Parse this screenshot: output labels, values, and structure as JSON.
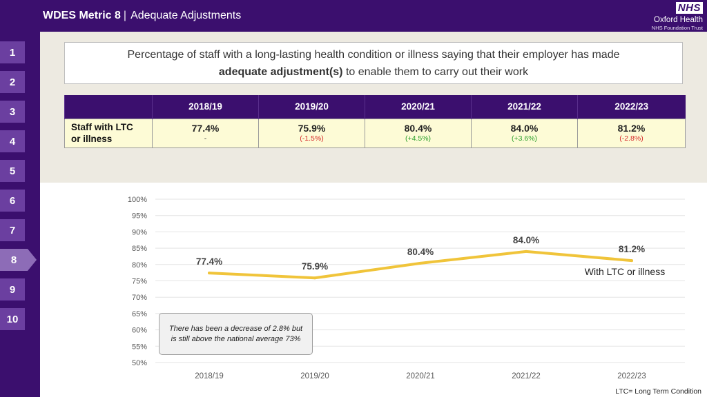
{
  "header": {
    "metric": "WDES Metric 8",
    "separator": "|",
    "subtitle": "Adequate Adjustments"
  },
  "logo": {
    "nhs": "NHS",
    "org": "Oxford Health",
    "trust": "NHS Foundation Trust"
  },
  "nav": {
    "items": [
      "1",
      "2",
      "3",
      "4",
      "5",
      "6",
      "7",
      "8",
      "9",
      "10"
    ],
    "active": "8"
  },
  "question": {
    "line1": "Percentage of staff with a long-lasting health condition or illness saying that their employer has made",
    "line2_bold": "adequate adjustment(s)",
    "line2_rest": "to enable them to carry out their work"
  },
  "table": {
    "years": [
      "2018/19",
      "2019/20",
      "2020/21",
      "2021/22",
      "2022/23"
    ],
    "row_label_1": "Staff with LTC",
    "row_label_2": "or illness",
    "values": [
      "77.4%",
      "75.9%",
      "80.4%",
      "84.0%",
      "81.2%"
    ],
    "changes": [
      "-",
      "(-1.5%)",
      "(+4.5%)",
      "(+3.6%)",
      "(-2.8%)"
    ],
    "change_colors": [
      "#333333",
      "#d62a2a",
      "#2ca02c",
      "#2ca02c",
      "#d62a2a"
    ]
  },
  "chart_data": {
    "type": "line",
    "title": "",
    "xlabel": "",
    "ylabel": "",
    "categories": [
      "2018/19",
      "2019/20",
      "2020/21",
      "2021/22",
      "2022/23"
    ],
    "series": [
      {
        "name": "With LTC or illness",
        "values": [
          77.4,
          75.9,
          80.4,
          84.0,
          81.2
        ],
        "color": "#f0c43a"
      }
    ],
    "data_labels": [
      "77.4%",
      "75.9%",
      "80.4%",
      "84.0%",
      "81.2%"
    ],
    "y_ticks": [
      50,
      55,
      60,
      65,
      70,
      75,
      80,
      85,
      90,
      95,
      100
    ],
    "y_tick_labels": [
      "50%",
      "55%",
      "60%",
      "65%",
      "70%",
      "75%",
      "80%",
      "85%",
      "90%",
      "95%",
      "100%"
    ],
    "ylim": [
      50,
      100
    ],
    "grid": true,
    "series_label": "With LTC or illness"
  },
  "note": {
    "line1": "There has been a decrease of 2.8% but",
    "line2": "is still above the national average 73%"
  },
  "footnote": "LTC= Long Term Condition"
}
